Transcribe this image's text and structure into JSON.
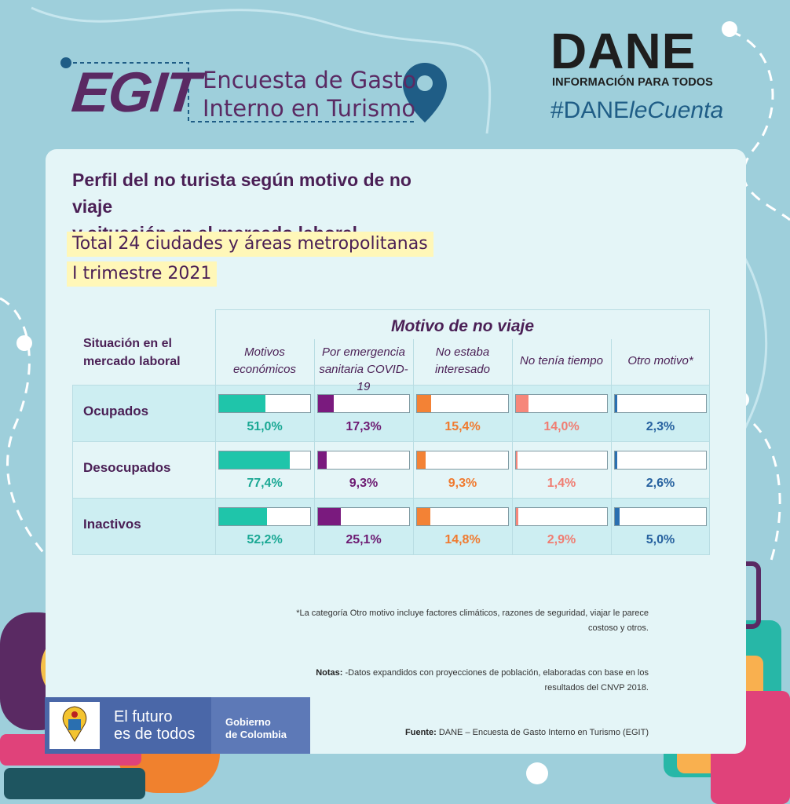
{
  "header": {
    "egit": "EGIT",
    "egit_title_line1": "Encuesta de Gasto",
    "egit_title_line2": "Interno en Turismo",
    "dane_logo": "DANE",
    "dane_subtitle": "INFORMACIÓN PARA TODOS",
    "hashtag_a": "#DANE",
    "hashtag_b": "leCuenta"
  },
  "card": {
    "title_line1": "Perfil del no turista según motivo de no viaje",
    "title_line2": "y situación en el mercado laboral",
    "highlight1": "Total 24 ciudades y áreas metropolitanas",
    "highlight2": "I trimestre 2021"
  },
  "chart_data": {
    "type": "bar",
    "title": "Perfil del no turista según motivo de no viaje y situación en el mercado laboral",
    "row_header_line1": "Situación en el",
    "row_header_line2": "mercado laboral",
    "column_group_header": "Motivo de no viaje",
    "categories": [
      "Ocupados",
      "Desocupados",
      "Inactivos"
    ],
    "series": [
      {
        "name": "Motivos económicos",
        "label1": "Motivos",
        "label2": "económicos",
        "color": "#1fc5aa",
        "text_color": "#1aa894",
        "values": [
          51.0,
          77.4,
          52.2
        ],
        "labels": [
          "51,0%",
          "77,4%",
          "52,2%"
        ]
      },
      {
        "name": "Por emergencia sanitaria COVID-19",
        "label1": "Por emergencia",
        "label2": "sanitaria COVID-19",
        "color": "#7a1a7e",
        "text_color": "#6d1a72",
        "values": [
          17.3,
          9.3,
          25.1
        ],
        "labels": [
          "17,3%",
          "9,3%",
          "25,1%"
        ]
      },
      {
        "name": "No estaba interesado",
        "label1": "No estaba",
        "label2": "interesado",
        "color": "#f38235",
        "text_color": "#f07a2f",
        "values": [
          15.4,
          9.3,
          14.8
        ],
        "labels": [
          "15,4%",
          "9,3%",
          "14,8%"
        ]
      },
      {
        "name": "No tenía tiempo",
        "label1": "No tenía tiempo",
        "label2": "",
        "color": "#f6877a",
        "text_color": "#f07d72",
        "values": [
          14.0,
          1.4,
          2.9
        ],
        "labels": [
          "14,0%",
          "1,4%",
          "2,9%"
        ]
      },
      {
        "name": "Otro motivo*",
        "label1": "Otro motivo*",
        "label2": "",
        "color": "#2a6fb0",
        "text_color": "#26619f",
        "values": [
          2.3,
          2.6,
          5.0
        ],
        "labels": [
          "2,3%",
          "2,6%",
          "5,0%"
        ]
      }
    ],
    "ylim": [
      0,
      100
    ]
  },
  "notes": {
    "otro_line1": "*La categoría Otro motivo incluye factores climáticos, razones de seguridad, viajar le parece",
    "otro_line2": "costoso y otros.",
    "notas_label": "Notas:",
    "notas_line1": " -Datos expandidos con proyecciones de población, elaboradas con base en los",
    "notas_line2": "resultados del CNVP 2018.",
    "fuente_label": "Fuente:",
    "fuente_text": " DANE – Encuesta de Gasto Interno en Turismo (EGIT)"
  },
  "gov_badge": {
    "line1": "El futuro",
    "line2": "es de todos",
    "line3": "Gobierno",
    "line4": "de Colombia"
  },
  "colors": {
    "background": "#9ecfdb",
    "card": "#e4f5f7",
    "primary_text": "#4a1f55",
    "highlight": "#fff7b8"
  }
}
